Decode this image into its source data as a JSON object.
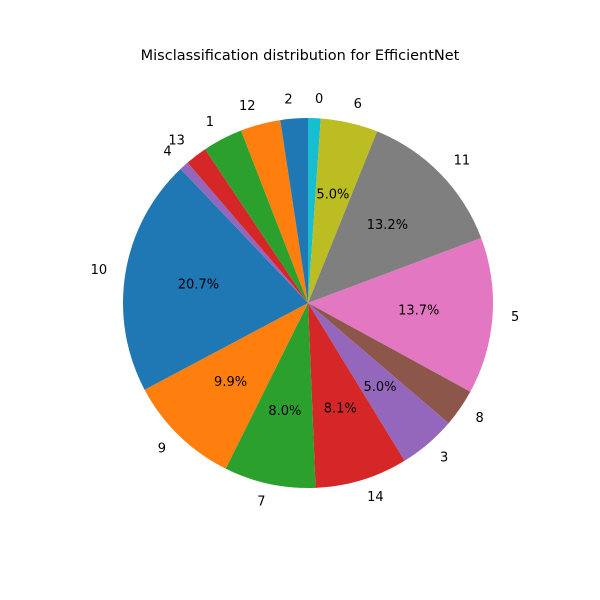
{
  "chart_data": {
    "type": "pie",
    "title": "Misclassification distribution for EfficientNet",
    "start_angle_deg": 90,
    "direction": "clockwise",
    "label_min_pct": 5.0,
    "slices": [
      {
        "label": "0",
        "value": 1.1,
        "color": "#17becf"
      },
      {
        "label": "6",
        "value": 5.0,
        "color": "#bcbd22"
      },
      {
        "label": "11",
        "value": 13.2,
        "color": "#7f7f7f"
      },
      {
        "label": "5",
        "value": 13.7,
        "color": "#e377c2"
      },
      {
        "label": "8",
        "value": 3.3,
        "color": "#8c564b"
      },
      {
        "label": "3",
        "value": 5.0,
        "color": "#9467bd"
      },
      {
        "label": "14",
        "value": 8.1,
        "color": "#d62728"
      },
      {
        "label": "7",
        "value": 8.0,
        "color": "#2ca02c"
      },
      {
        "label": "9",
        "value": 9.9,
        "color": "#ff7f0e"
      },
      {
        "label": "10",
        "value": 20.7,
        "color": "#1f77b4"
      },
      {
        "label": "4",
        "value": 0.8,
        "color": "#9467bd"
      },
      {
        "label": "13",
        "value": 1.9,
        "color": "#d62728"
      },
      {
        "label": "1",
        "value": 3.5,
        "color": "#2ca02c"
      },
      {
        "label": "12",
        "value": 3.5,
        "color": "#ff7f0e"
      },
      {
        "label": "2",
        "value": 2.4,
        "color": "#1f77b4"
      }
    ]
  }
}
